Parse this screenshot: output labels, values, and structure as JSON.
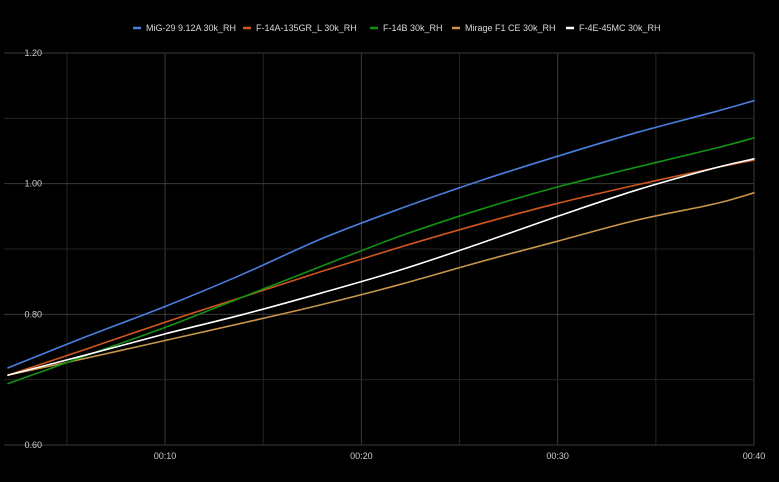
{
  "chart_data": {
    "type": "line",
    "title": "",
    "xlabel": "",
    "ylabel": "",
    "x_unit": "seconds",
    "xlim": [
      2,
      40
    ],
    "ylim": [
      0.6,
      1.2
    ],
    "x_ticks": [
      {
        "value": 10,
        "label": "00:10"
      },
      {
        "value": 20,
        "label": "00:20"
      },
      {
        "value": 30,
        "label": "00:30"
      },
      {
        "value": 40,
        "label": "00:40"
      }
    ],
    "y_ticks": [
      {
        "value": 0.6,
        "label": "0.60"
      },
      {
        "value": 0.8,
        "label": "0.80"
      },
      {
        "value": 1.0,
        "label": "1.00"
      },
      {
        "value": 1.2,
        "label": "1.20"
      }
    ],
    "grid": true,
    "legend_position": "top",
    "series": [
      {
        "name": "MiG-29 9.12A 30k_RH",
        "color": "#4a7fe0",
        "x": [
          2,
          6,
          10,
          14,
          18,
          22,
          26,
          30,
          34,
          38,
          40
        ],
        "y": [
          0.718,
          0.766,
          0.812,
          0.862,
          0.916,
          0.962,
          1.004,
          1.042,
          1.078,
          1.11,
          1.127
        ]
      },
      {
        "name": "F-14A-135GR_L 30k_RH",
        "color": "#d2571e",
        "x": [
          2,
          6,
          10,
          14,
          18,
          22,
          26,
          30,
          34,
          38,
          40
        ],
        "y": [
          0.707,
          0.747,
          0.788,
          0.827,
          0.866,
          0.903,
          0.938,
          0.97,
          0.998,
          1.024,
          1.036
        ]
      },
      {
        "name": "F-14B 30k_RH",
        "color": "#129212",
        "x": [
          2,
          6,
          10,
          14,
          18,
          22,
          26,
          30,
          34,
          38,
          40
        ],
        "y": [
          0.694,
          0.737,
          0.78,
          0.827,
          0.874,
          0.92,
          0.96,
          0.995,
          1.025,
          1.054,
          1.07
        ]
      },
      {
        "name": "Mirage F1 CE 30k_RH",
        "color": "#c8954a",
        "x": [
          2,
          6,
          10,
          14,
          18,
          22,
          26,
          30,
          34,
          38,
          40
        ],
        "y": [
          0.707,
          0.733,
          0.76,
          0.787,
          0.815,
          0.846,
          0.88,
          0.912,
          0.944,
          0.969,
          0.986
        ]
      },
      {
        "name": "F-4E-45MC 30k_RH",
        "color": "#ffffff",
        "x": [
          2,
          6,
          10,
          14,
          18,
          22,
          26,
          30,
          34,
          38,
          40
        ],
        "y": [
          0.707,
          0.738,
          0.77,
          0.8,
          0.833,
          0.868,
          0.908,
          0.95,
          0.99,
          1.024,
          1.038
        ]
      }
    ]
  }
}
